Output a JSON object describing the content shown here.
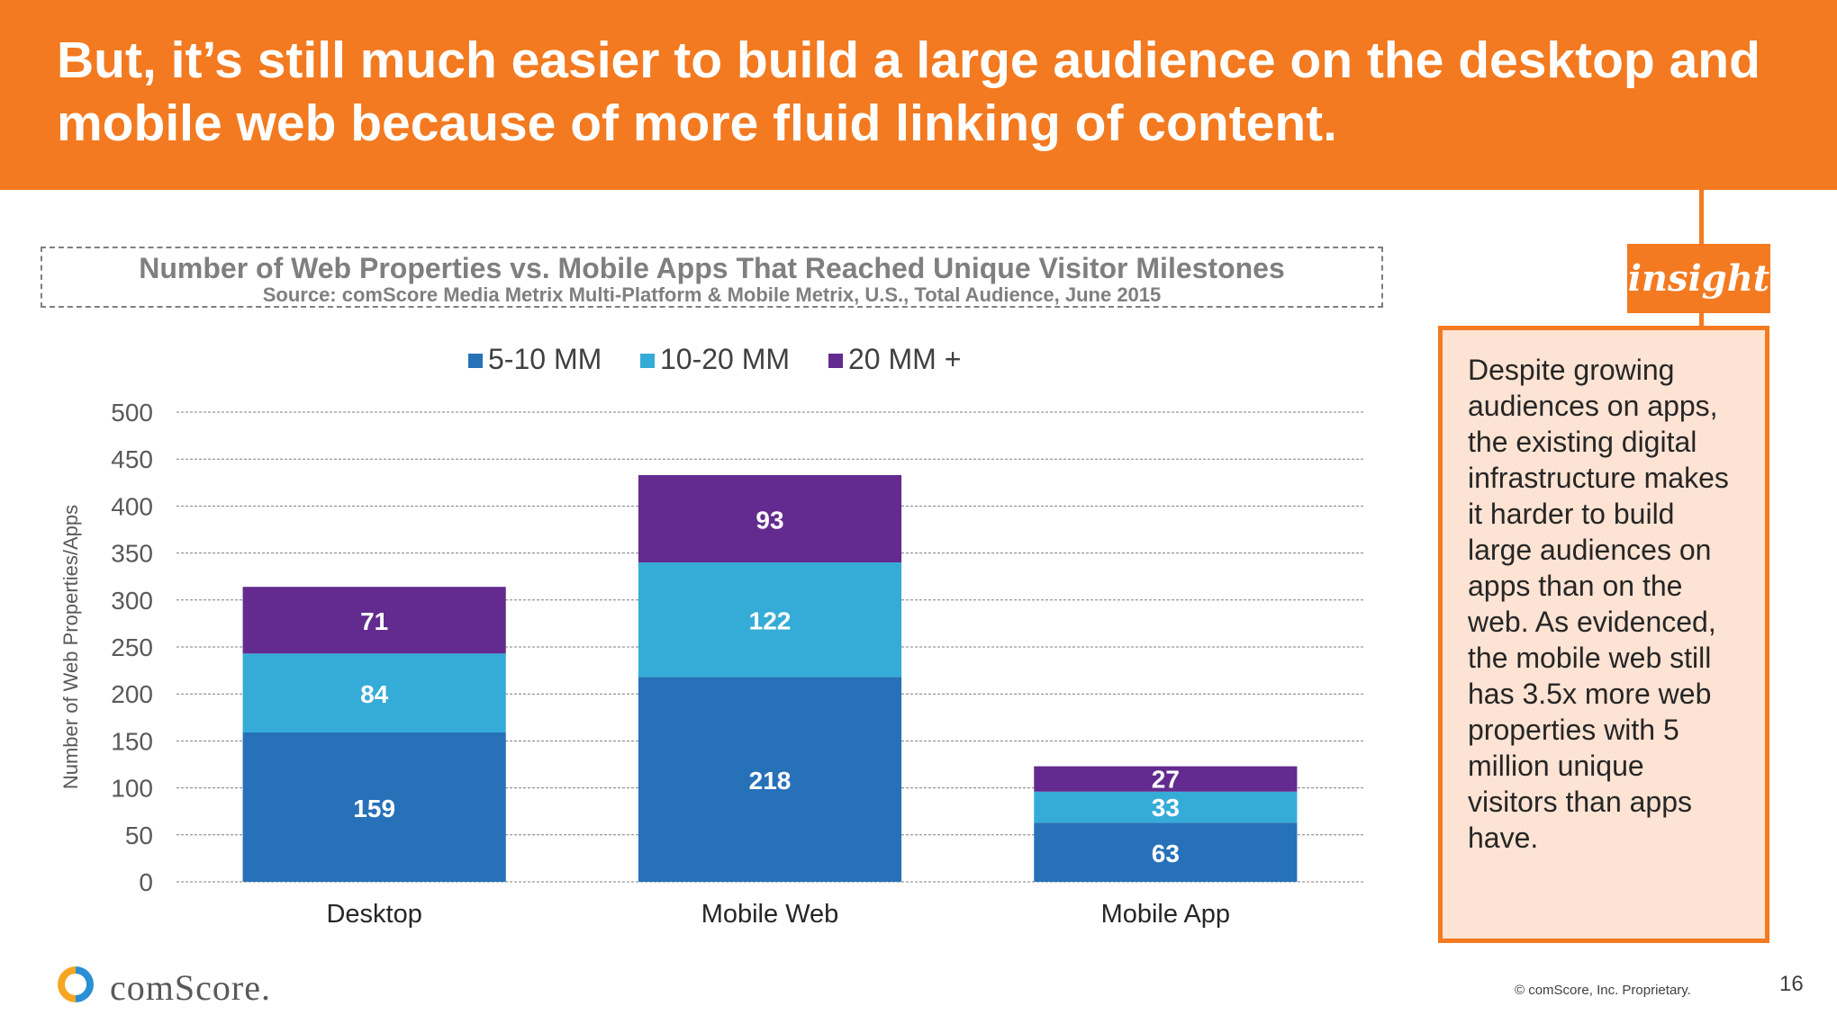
{
  "header": {
    "title": "But, it’s still much easier to build a large audience on the desktop and mobile web because of more fluid linking of content."
  },
  "chart_data": {
    "type": "bar",
    "stacked": true,
    "title": "Number of Web Properties vs. Mobile Apps That Reached Unique Visitor Milestones",
    "subtitle": "Source: comScore Media Metrix Multi-Platform & Mobile Metrix, U.S., Total Audience, June 2015",
    "categories": [
      "Desktop",
      "Mobile Web",
      "Mobile App"
    ],
    "series": [
      {
        "name": "5-10 MM",
        "values": [
          159,
          218,
          63
        ],
        "color": "#2771b9"
      },
      {
        "name": "10-20 MM",
        "values": [
          84,
          122,
          33
        ],
        "color": "#35acd7"
      },
      {
        "name": "20 MM +",
        "values": [
          71,
          93,
          27
        ],
        "color": "#632b8f"
      }
    ],
    "ylabel": "Number of Web Properties/Apps",
    "xlabel": "",
    "ylim": [
      0,
      500
    ],
    "yticks": [
      0,
      50,
      100,
      150,
      200,
      250,
      300,
      350,
      400,
      450,
      500
    ],
    "grid": true,
    "legend": "top"
  },
  "insight": {
    "badge": "insight",
    "text": "Despite growing audiences on apps, the existing digital infrastructure makes it harder to build large audiences on apps than on the web. As evidenced, the mobile web still has 3.5x more web properties with 5 million unique visitors than apps have."
  },
  "footer": {
    "brand": "comScore.",
    "copyright": "© comScore, Inc. Proprietary.",
    "page": "16"
  },
  "colors": {
    "accent": "#f37a20",
    "insight_bg": "#fde3d3"
  }
}
